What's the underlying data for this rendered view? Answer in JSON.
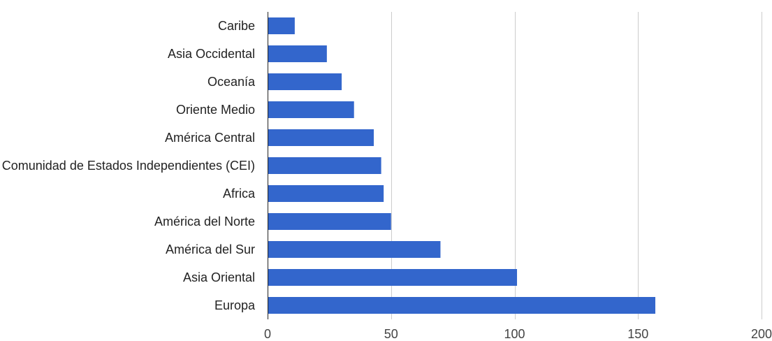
{
  "chart_data": {
    "type": "bar",
    "orientation": "horizontal",
    "categories": [
      "Caribe",
      "Asia Occidental",
      "Oceanía",
      "Oriente Medio",
      "América Central",
      "Comunidad de Estados Independientes (CEI)",
      "Africa",
      "América del Norte",
      "América del Sur",
      "Asia Oriental",
      "Europa"
    ],
    "values": [
      11,
      24,
      30,
      35,
      43,
      46,
      47,
      50,
      70,
      101,
      157
    ],
    "xlim": [
      0,
      200
    ],
    "xticks": [
      0,
      50,
      100,
      150,
      200
    ],
    "xtick_labels": [
      "0",
      "50",
      "100",
      "150",
      "200"
    ],
    "grid": true,
    "legend": "none",
    "title": "",
    "xlabel": "",
    "ylabel": "",
    "bar_color": "#3366cc"
  }
}
